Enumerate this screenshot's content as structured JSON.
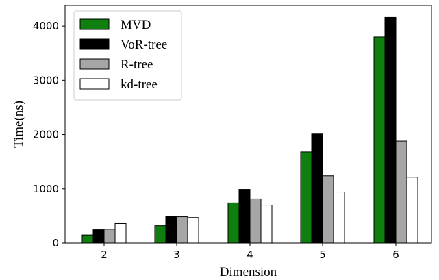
{
  "chart_data": {
    "type": "bar",
    "title": "",
    "xlabel": "Dimension",
    "ylabel": "Time(ns)",
    "categories": [
      "2",
      "3",
      "4",
      "5",
      "6"
    ],
    "yticks": [
      0,
      1000,
      2000,
      3000,
      4000
    ],
    "ylim": [
      0,
      4380
    ],
    "grid": false,
    "legend_position": "top-left",
    "series": [
      {
        "name": "MVD",
        "color": "#0f800f",
        "values": [
          150,
          320,
          740,
          1680,
          3800
        ]
      },
      {
        "name": "VoR-tree",
        "color": "#000000",
        "values": [
          245,
          490,
          990,
          2010,
          4160
        ]
      },
      {
        "name": "R-tree",
        "color": "#a6a6a6",
        "values": [
          255,
          485,
          815,
          1240,
          1880
        ]
      },
      {
        "name": "kd-tree",
        "color": "#ffffff",
        "values": [
          360,
          470,
          700,
          940,
          1215
        ]
      }
    ]
  }
}
